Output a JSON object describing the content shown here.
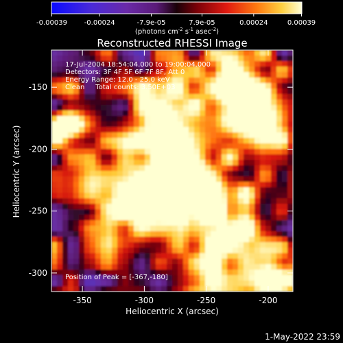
{
  "chart_data": {
    "type": "heatmap",
    "title": "Reconstructed RHESSI Image",
    "xlabel": "Heliocentric X (arcsec)",
    "ylabel": "Heliocentric Y (arcsec)",
    "xlim": [
      -375,
      -180
    ],
    "ylim": [
      -315,
      -120
    ],
    "x_ticks": [
      "-350",
      "-300",
      "-250",
      "-200"
    ],
    "x_tick_values": [
      -350,
      -300,
      -250,
      -200
    ],
    "y_ticks": [
      "-150",
      "-200",
      "-250",
      "-300"
    ],
    "y_tick_values": [
      -150,
      -200,
      -250,
      -300
    ],
    "colorbar": {
      "ticks": [
        "-0.00039",
        "-0.00024",
        "-7.9e-05",
        "7.9e-05",
        "0.00024",
        "0.00039"
      ],
      "tick_values": [
        -0.00039,
        -0.00024,
        -7.9e-05,
        7.9e-05,
        0.00024,
        0.00039
      ],
      "range": [
        -0.00039,
        0.00039
      ],
      "units_text": "(photons cm",
      "units_sup1": "-2",
      "units_mid": " s",
      "units_sup2": "-1",
      "units_end": " asec",
      "units_sup3": "-2",
      "units_close": ")"
    },
    "info_lines": [
      "17-Jul-2004 18:54:04.000 to 19:00:04.000",
      "Detectors: 3F 4F 5F 6F 7F 8F, Att 0",
      "Energy Range: 12.0 - 25.0 keV",
      "Clean     Total counts: 3.50E+03"
    ],
    "peak_label": "Position of Peak = [-367,-180]",
    "timestamp": "1-May-2022 23:59",
    "grid": false
  }
}
